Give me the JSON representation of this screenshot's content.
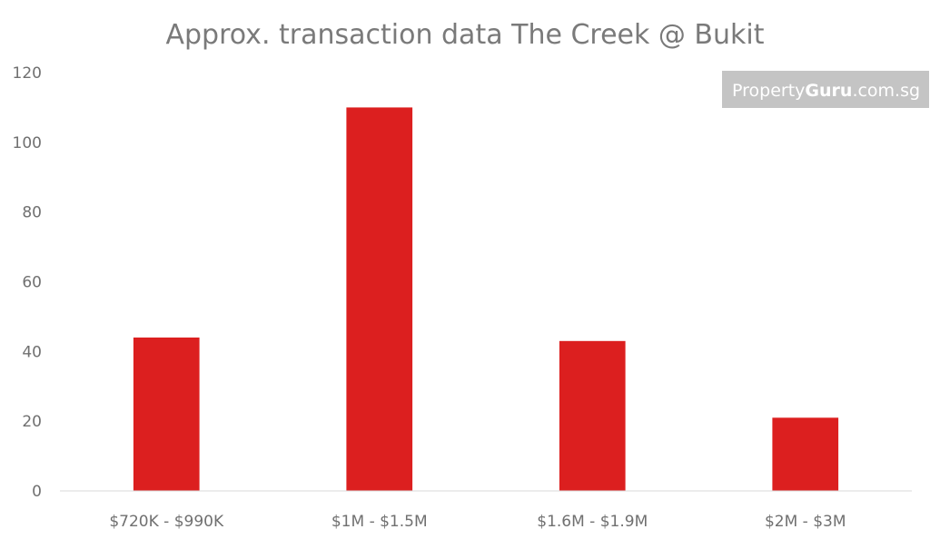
{
  "chart_data": {
    "type": "bar",
    "title": "Approx. transaction data The Creek @ Bukit",
    "categories": [
      "$720K - $990K",
      "$1M - $1.5M",
      "$1.6M - $1.9M",
      "$2M - $3M"
    ],
    "values": [
      44,
      110,
      43,
      21
    ],
    "xlabel": "",
    "ylabel": "",
    "ylim": [
      0,
      120
    ],
    "yticks": [
      0,
      20,
      40,
      60,
      80,
      100,
      120
    ],
    "grid": false,
    "legend": "none",
    "bar_color": "#dc1f1f"
  },
  "watermark": {
    "prefix": "Property",
    "brand": "Guru",
    "suffix": ".com.sg"
  }
}
